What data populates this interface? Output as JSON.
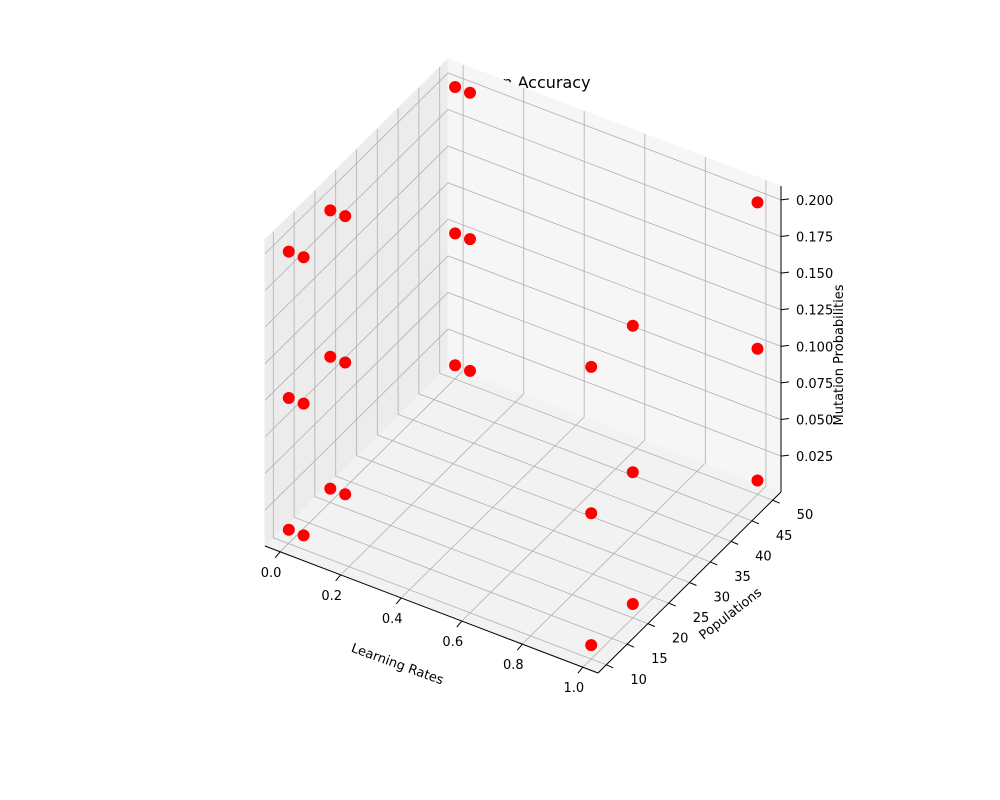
{
  "chart_data": {
    "type": "scatter",
    "title": "Validation Accuracy",
    "xlabel": "Learning Rates",
    "ylabel": "Populations",
    "zlabel": "Mutation Probabilities",
    "x_ticks": [
      "0.0",
      "0.2",
      "0.4",
      "0.6",
      "0.8",
      "1.0"
    ],
    "y_ticks": [
      "10",
      "15",
      "20",
      "25",
      "30",
      "35",
      "40",
      "45",
      "50"
    ],
    "z_ticks": [
      "0.025",
      "0.050",
      "0.075",
      "0.100",
      "0.125",
      "0.150",
      "0.175",
      "0.200"
    ],
    "marker_color": "#ff0000",
    "grid": true,
    "points": [
      {
        "x": 0.001,
        "y": 10,
        "z": 0.01
      },
      {
        "x": 0.001,
        "y": 10,
        "z": 0.1
      },
      {
        "x": 0.001,
        "y": 10,
        "z": 0.2
      },
      {
        "x": 0.001,
        "y": 20,
        "z": 0.01
      },
      {
        "x": 0.001,
        "y": 20,
        "z": 0.1
      },
      {
        "x": 0.001,
        "y": 20,
        "z": 0.2
      },
      {
        "x": 0.001,
        "y": 50,
        "z": 0.01
      },
      {
        "x": 0.001,
        "y": 50,
        "z": 0.1
      },
      {
        "x": 0.001,
        "y": 50,
        "z": 0.2
      },
      {
        "x": 0.05,
        "y": 10,
        "z": 0.01
      },
      {
        "x": 0.05,
        "y": 10,
        "z": 0.1
      },
      {
        "x": 0.05,
        "y": 10,
        "z": 0.2
      },
      {
        "x": 0.05,
        "y": 20,
        "z": 0.01
      },
      {
        "x": 0.05,
        "y": 20,
        "z": 0.1
      },
      {
        "x": 0.05,
        "y": 20,
        "z": 0.2
      },
      {
        "x": 0.05,
        "y": 50,
        "z": 0.01
      },
      {
        "x": 0.05,
        "y": 50,
        "z": 0.1
      },
      {
        "x": 0.05,
        "y": 50,
        "z": 0.2
      },
      {
        "x": 1.0,
        "y": 10,
        "z": 0.01
      },
      {
        "x": 1.0,
        "y": 10,
        "z": 0.1
      },
      {
        "x": 1.0,
        "y": 10,
        "z": 0.2
      },
      {
        "x": 1.0,
        "y": 20,
        "z": 0.01
      },
      {
        "x": 1.0,
        "y": 20,
        "z": 0.1
      },
      {
        "x": 1.0,
        "y": 20,
        "z": 0.2
      },
      {
        "x": 1.0,
        "y": 50,
        "z": 0.01
      },
      {
        "x": 1.0,
        "y": 50,
        "z": 0.1
      },
      {
        "x": 1.0,
        "y": 50,
        "z": 0.2
      }
    ]
  }
}
